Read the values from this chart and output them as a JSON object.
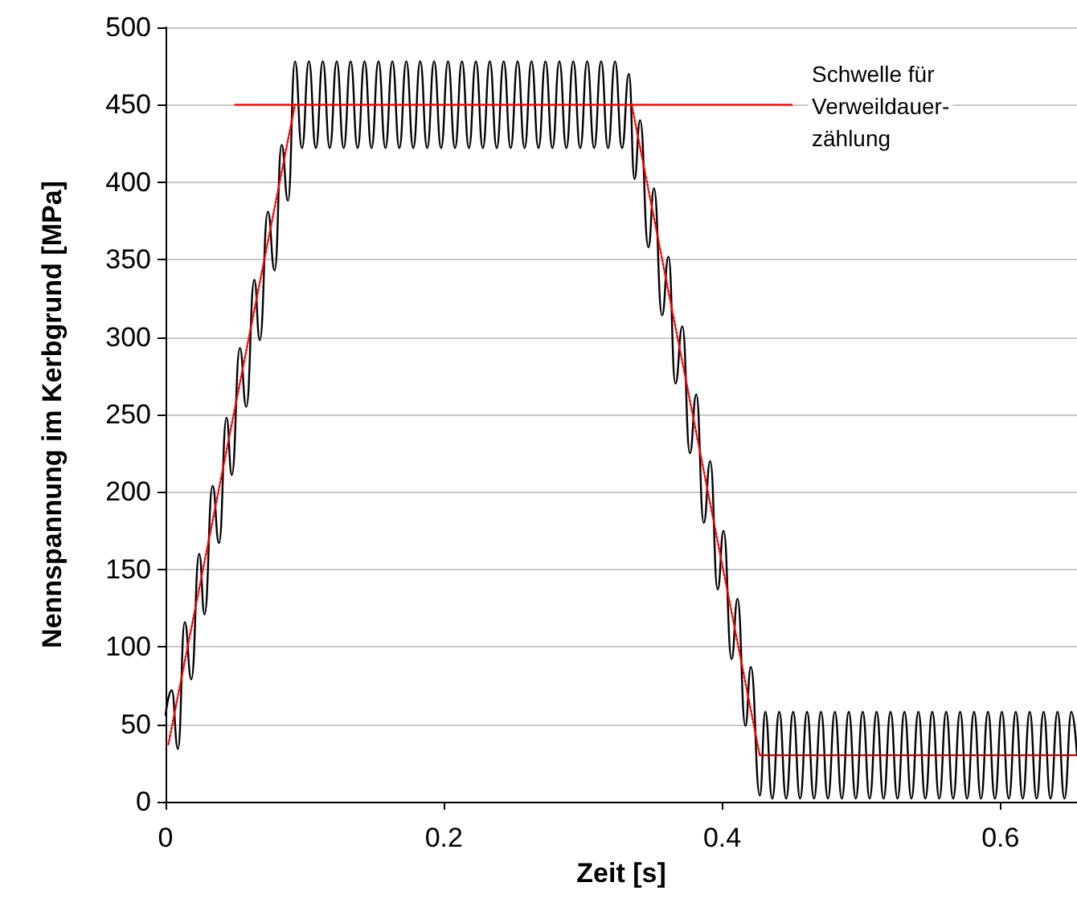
{
  "chart_data": {
    "type": "line",
    "xlabel": "Zeit [s]",
    "ylabel": "Nennspannung im Kerbgrund [MPa]",
    "xlim": [
      0,
      0.655
    ],
    "xticks": [
      0,
      0.2,
      0.4,
      0.6
    ],
    "ylim": [
      0,
      500
    ],
    "yticks": [
      0,
      50,
      100,
      150,
      200,
      250,
      300,
      350,
      400,
      450,
      500
    ],
    "grid": "y",
    "marker": "none",
    "series": [
      {
        "color": "#000000",
        "line_style": "solid",
        "x": [
          0,
          0.0044,
          0.0089,
          0.0138,
          0.0185,
          0.0242,
          0.028,
          0.0338,
          0.0384,
          0.0438,
          0.0476,
          0.0534,
          0.058,
          0.0638,
          0.0677,
          0.0735,
          0.0784,
          0.0834,
          0.088,
          0.093,
          0.098,
          0.103,
          0.108,
          0.113,
          0.118,
          0.123,
          0.128,
          0.133,
          0.138,
          0.143,
          0.148,
          0.153,
          0.158,
          0.163,
          0.168,
          0.173,
          0.178,
          0.183,
          0.188,
          0.193,
          0.198,
          0.203,
          0.208,
          0.213,
          0.218,
          0.223,
          0.228,
          0.233,
          0.238,
          0.243,
          0.248,
          0.253,
          0.258,
          0.263,
          0.268,
          0.273,
          0.278,
          0.283,
          0.288,
          0.293,
          0.298,
          0.303,
          0.308,
          0.313,
          0.318,
          0.323,
          0.328,
          0.333,
          0.337,
          0.341,
          0.347,
          0.351,
          0.3568,
          0.3614,
          0.3664,
          0.3714,
          0.3768,
          0.3814,
          0.3868,
          0.3914,
          0.3968,
          0.401,
          0.4068,
          0.411,
          0.4167,
          0.4206,
          0.4271,
          0.431,
          0.436,
          0.441,
          0.446,
          0.451,
          0.456,
          0.461,
          0.466,
          0.471,
          0.476,
          0.481,
          0.486,
          0.491,
          0.496,
          0.501,
          0.506,
          0.511,
          0.516,
          0.521,
          0.526,
          0.531,
          0.536,
          0.541,
          0.546,
          0.551,
          0.556,
          0.561,
          0.566,
          0.571,
          0.576,
          0.581,
          0.586,
          0.591,
          0.596,
          0.601,
          0.606,
          0.611,
          0.616,
          0.621,
          0.626,
          0.631,
          0.636,
          0.641,
          0.646,
          0.651,
          0.655
        ],
        "values": [
          56,
          72,
          34,
          116,
          79,
          160,
          121,
          204,
          167,
          248,
          211,
          293,
          255,
          337,
          298,
          381,
          343,
          424,
          388,
          478,
          422,
          478,
          422,
          478,
          422,
          478,
          422,
          478,
          422,
          478,
          422,
          478,
          422,
          478,
          422,
          478,
          422,
          478,
          422,
          478,
          422,
          478,
          422,
          478,
          422,
          478,
          422,
          478,
          422,
          478,
          422,
          478,
          422,
          478,
          422,
          478,
          422,
          478,
          422,
          478,
          422,
          478,
          422,
          478,
          422,
          478,
          422,
          470,
          402,
          440,
          358,
          396,
          314,
          352,
          270,
          307,
          225,
          263,
          180,
          220,
          137,
          175,
          92,
          131,
          49,
          87,
          4,
          58,
          2,
          58,
          2,
          58,
          2,
          58,
          2,
          58,
          2,
          58,
          2,
          58,
          2,
          58,
          2,
          58,
          2,
          58,
          2,
          58,
          2,
          58,
          2,
          58,
          2,
          58,
          2,
          58,
          2,
          58,
          2,
          58,
          2,
          58,
          2,
          58,
          2,
          58,
          2,
          58,
          2,
          58,
          2,
          58,
          30
        ]
      },
      {
        "color": "#ff0000",
        "line_style": "dotted",
        "x": [
          0.002,
          0.093,
          0.2,
          0.335,
          0.427
        ],
        "values": [
          37,
          450,
          null,
          450,
          30
        ]
      },
      {
        "color": "#c00000",
        "line_style": "solid",
        "x": [
          0.427,
          0.655
        ],
        "values": [
          30,
          30
        ]
      },
      {
        "color": "#ff0000",
        "line_style": "solid",
        "x": [
          0.05,
          0.45
        ],
        "values": [
          450,
          450
        ]
      }
    ],
    "annotations": [
      "Schwelle für\nVerweildauer-\nzählung"
    ]
  }
}
